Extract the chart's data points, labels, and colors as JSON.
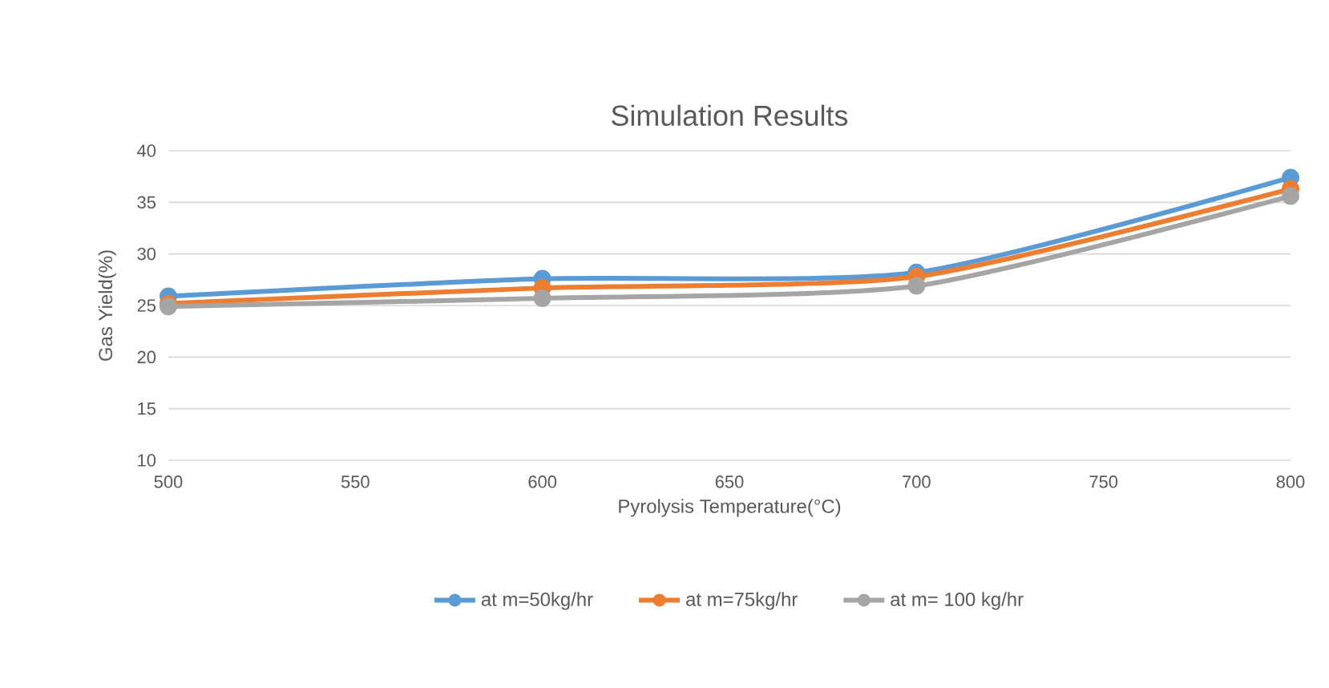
{
  "chart_data": {
    "type": "line",
    "title": "Simulation Results",
    "xlabel": "Pyrolysis Temperature(°C)",
    "ylabel": "Gas Yield(%)",
    "x": [
      500,
      600,
      700,
      800
    ],
    "series": [
      {
        "name": "at m=50kg/hr",
        "color": "#5b9bd5",
        "values": [
          25.9,
          27.6,
          28.2,
          37.4
        ]
      },
      {
        "name": "at m=75kg/hr",
        "color": "#ed7d31",
        "values": [
          25.2,
          26.7,
          27.8,
          36.3
        ]
      },
      {
        "name": "at m= 100 kg/hr",
        "color": "#a5a5a5",
        "values": [
          24.9,
          25.7,
          26.9,
          35.6
        ]
      }
    ],
    "xlim": [
      500,
      800
    ],
    "xticks": [
      500,
      550,
      600,
      650,
      700,
      750,
      800
    ],
    "ylim": [
      10,
      40
    ],
    "yticks": [
      10,
      15,
      20,
      25,
      30,
      35,
      40
    ],
    "grid": "y",
    "legend": "bottom",
    "marker": "circle",
    "line_style": "solid"
  }
}
